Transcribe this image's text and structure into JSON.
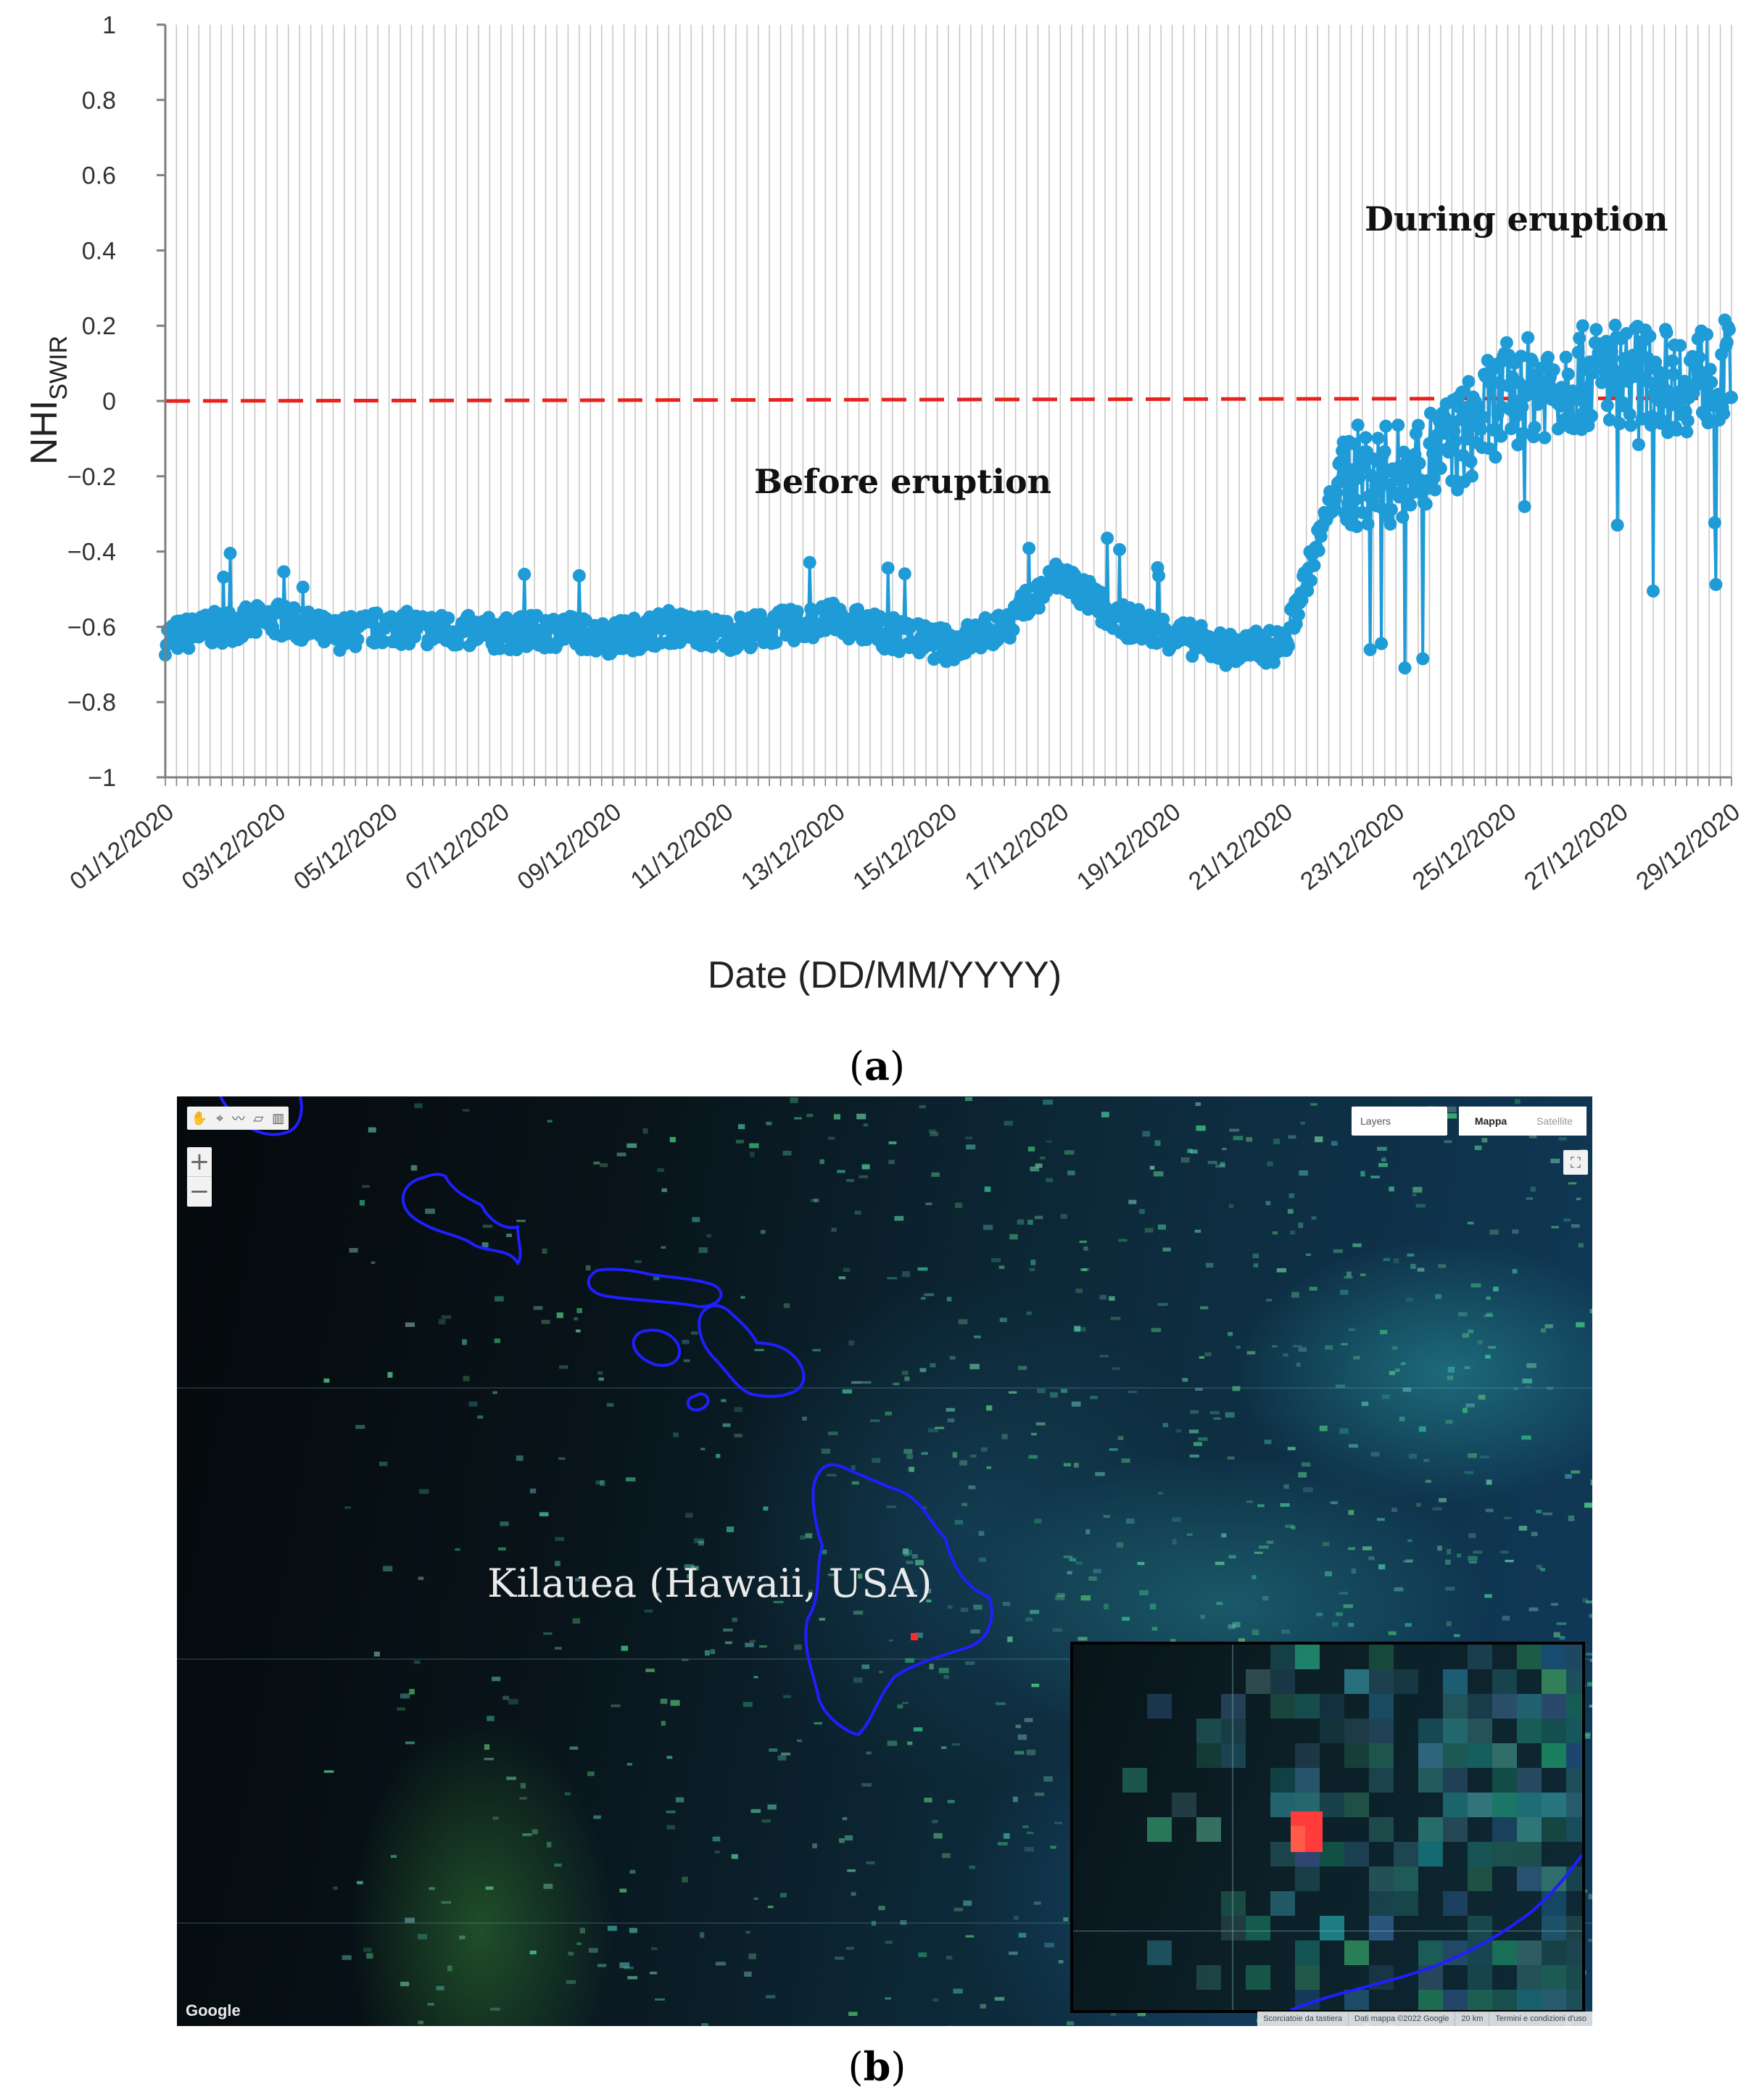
{
  "chart_data": {
    "type": "line",
    "title": "",
    "xlabel": "Date (DD/MM/YYYY)",
    "ylabel": "NHI",
    "ylabel_subscript": "SWIR",
    "ylim": [
      -1,
      1
    ],
    "yticks": [
      "1",
      "0.8",
      "0.6",
      "0.4",
      "0.2",
      "0",
      "−0.2",
      "−0.4",
      "−0.6",
      "−0.8",
      "−1"
    ],
    "ytick_values": [
      1,
      0.8,
      0.6,
      0.4,
      0.2,
      0,
      -0.2,
      -0.4,
      -0.6,
      -0.8,
      -1
    ],
    "xticks": [
      "01/12/2020",
      "03/12/2020",
      "05/12/2020",
      "07/12/2020",
      "09/12/2020",
      "11/12/2020",
      "13/12/2020",
      "15/12/2020",
      "17/12/2020",
      "19/12/2020",
      "21/12/2020",
      "23/12/2020",
      "25/12/2020",
      "27/12/2020",
      "29/12/2020"
    ],
    "xlim": [
      "01/12/2020",
      "29/12/2020"
    ],
    "grid": "vertical",
    "legend": "none",
    "threshold": {
      "value": 0,
      "style": "dashed",
      "color": "#e8231e"
    },
    "series_color": "#1f9bd7",
    "annotations": [
      "Before eruption",
      "During eruption"
    ],
    "series": [
      {
        "x": [
          "01/12/2020",
          "02/12/2020",
          "03/12/2020",
          "04/12/2020",
          "05/12/2020",
          "06/12/2020",
          "07/12/2020",
          "08/12/2020",
          "09/12/2020",
          "10/12/2020",
          "11/12/2020",
          "12/12/2020",
          "13/12/2020",
          "14/12/2020",
          "15/12/2020",
          "16/12/2020",
          "17/12/2020",
          "18/12/2020",
          "19/12/2020",
          "20/12/2020",
          "21/12/2020",
          "22/12/2020",
          "23/12/2020",
          "24/12/2020",
          "25/12/2020",
          "26/12/2020",
          "27/12/2020",
          "28/12/2020",
          "29/12/2020"
        ],
        "y": [
          -0.63,
          -0.6,
          -0.58,
          -0.62,
          -0.6,
          -0.61,
          -0.62,
          -0.61,
          -0.63,
          -0.6,
          -0.62,
          -0.6,
          -0.58,
          -0.62,
          -0.65,
          -0.6,
          -0.46,
          -0.58,
          -0.62,
          -0.66,
          -0.65,
          -0.2,
          -0.2,
          -0.12,
          0.02,
          0.05,
          0.08,
          0.05,
          0.08
        ]
      }
    ]
  },
  "caption_a": "a",
  "caption_b": "b",
  "map": {
    "label": "Kilauea (Hawaii, USA)",
    "layers": "Layers",
    "map_type_map": "Mappa",
    "map_type_satellite": "Satellite",
    "zoom_in": "+",
    "zoom_out": "−",
    "tools": [
      "✋",
      "⌖",
      "〰",
      "▱",
      "▥"
    ],
    "fullscreen": "⛶",
    "google": "Google",
    "attrib_shortcuts": "Scorciatoie da tastiera",
    "attrib_data": "Dati mappa ©2022 Google",
    "attrib_scale": "20 km",
    "attrib_terms": "Termini e condizioni d'uso",
    "coast_color": "#1f1fff",
    "hotspot_color": "#ff2a2a"
  }
}
